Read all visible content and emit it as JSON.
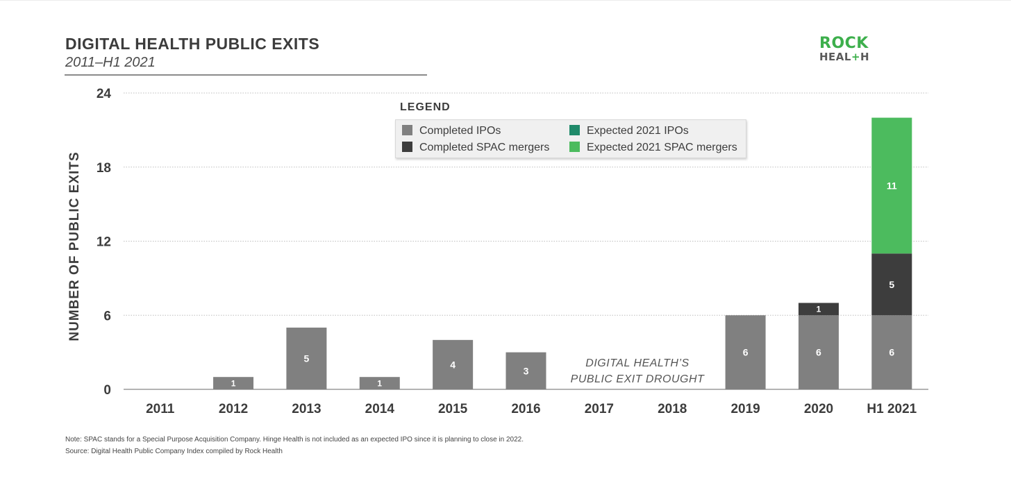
{
  "header": {
    "title": "DIGITAL HEALTH PUBLIC EXITS",
    "subtitle": "2011–H1 2021"
  },
  "logo": {
    "line1": "ROCK",
    "line2_a": "HEAL",
    "line2_plus": "+",
    "line2_b": "H"
  },
  "colors": {
    "completed_ipos": "#808080",
    "completed_spac": "#3d3d3d",
    "expected_ipos": "#1f8a6a",
    "expected_spac": "#4cbb5e",
    "grid": "#bdbdbd",
    "axis": "#9a9a9a"
  },
  "legend": {
    "title": "LEGEND",
    "items": [
      {
        "label": "Completed IPOs",
        "color": "#808080"
      },
      {
        "label": "Completed SPAC mergers",
        "color": "#3d3d3d"
      },
      {
        "label": "Expected 2021 IPOs",
        "color": "#1f8a6a"
      },
      {
        "label": "Expected 2021 SPAC mergers",
        "color": "#4cbb5e"
      }
    ]
  },
  "annotation": {
    "line1": "DIGITAL HEALTH’S",
    "line2": "PUBLIC EXIT DROUGHT"
  },
  "footnotes": {
    "note": "Note: SPAC stands for a Special Purpose Acquisition Company. Hinge Health is not included as an expected IPO since it is planning to close in 2022.",
    "source": "Source: Digital Health Public Company Index compiled by Rock Health"
  },
  "chart_data": {
    "type": "bar",
    "stacked": true,
    "title": "DIGITAL HEALTH PUBLIC EXITS",
    "subtitle": "2011–H1 2021",
    "ylabel": "NUMBER OF PUBLIC EXITS",
    "xlabel": "",
    "ylim": [
      0,
      24
    ],
    "yticks": [
      0,
      6,
      12,
      18,
      24
    ],
    "grid": true,
    "legend_position": "top-center",
    "categories": [
      "2011",
      "2012",
      "2013",
      "2014",
      "2015",
      "2016",
      "2017",
      "2018",
      "2019",
      "2020",
      "H1 2021"
    ],
    "series": [
      {
        "name": "Completed IPOs",
        "color": "#808080",
        "values": [
          0,
          1,
          5,
          1,
          4,
          3,
          0,
          0,
          6,
          6,
          6
        ]
      },
      {
        "name": "Completed SPAC mergers",
        "color": "#3d3d3d",
        "values": [
          0,
          0,
          0,
          0,
          0,
          0,
          0,
          0,
          0,
          1,
          5
        ]
      },
      {
        "name": "Expected 2021 IPOs",
        "color": "#1f8a6a",
        "values": [
          0,
          0,
          0,
          0,
          0,
          0,
          0,
          0,
          0,
          0,
          0
        ]
      },
      {
        "name": "Expected 2021 SPAC mergers",
        "color": "#4cbb5e",
        "values": [
          0,
          0,
          0,
          0,
          0,
          0,
          0,
          0,
          0,
          0,
          11
        ]
      }
    ]
  }
}
